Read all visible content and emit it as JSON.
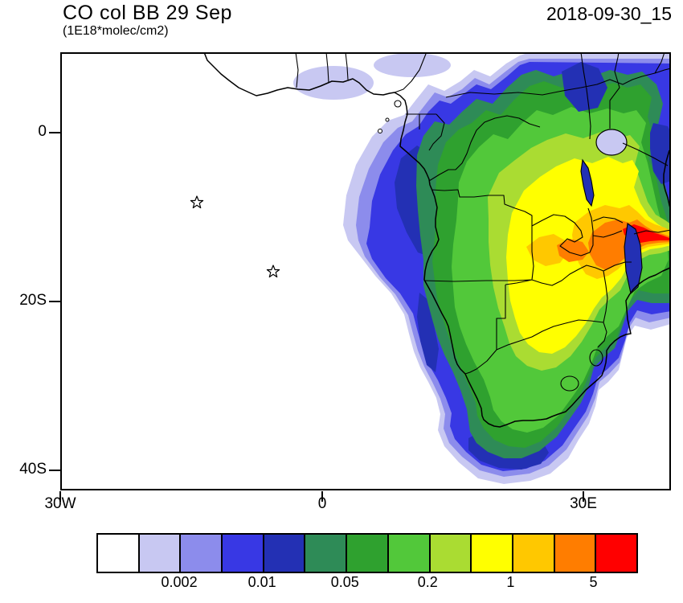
{
  "header": {
    "title": "CO col BB 29 Sep",
    "subtitle": "(1E18*molec/cm2)",
    "timestamp": "2018-09-30_15"
  },
  "map": {
    "y_ticks": [
      "0",
      "20S",
      "40S"
    ],
    "x_ticks": [
      "30W",
      "0",
      "30E"
    ]
  },
  "colorbar": {
    "labels": [
      "0.002",
      "0.01",
      "0.05",
      "0.2",
      "1",
      "5"
    ],
    "colors": [
      "#ffffff",
      "#c8c8f2",
      "#8c8cec",
      "#3838e4",
      "#2330b4",
      "#2e8b57",
      "#2fa12f",
      "#52c83a",
      "#aadc32",
      "#ffff00",
      "#ffc800",
      "#ff7d00",
      "#ff0000"
    ]
  },
  "chart_data": {
    "type": "heatmap",
    "subtype": "filled-contour-map",
    "title": "CO col BB 29 Sep",
    "units": "1E18*molec/cm2",
    "run_label": "2018-09-30_15",
    "region": "Africa and South Atlantic",
    "lon_range_deg": [
      -30,
      40
    ],
    "lat_range_deg": [
      -42,
      9.5
    ],
    "x_tick_labels": [
      "30W",
      "0",
      "30E"
    ],
    "y_tick_labels": [
      "0",
      "20S",
      "40S"
    ],
    "colorbar_tick_labels": [
      "0.002",
      "0.01",
      "0.05",
      "0.2",
      "1",
      "5"
    ],
    "contour_levels": [
      0.001,
      0.002,
      0.005,
      0.01,
      0.02,
      0.05,
      0.1,
      0.2,
      0.5,
      1,
      2,
      5
    ],
    "palette": [
      "#ffffff",
      "#c8c8f2",
      "#8c8cec",
      "#3838e4",
      "#2330b4",
      "#2e8b57",
      "#2fa12f",
      "#52c83a",
      "#aadc32",
      "#ffff00",
      "#ffc800",
      "#ff7d00",
      "#ff0000"
    ],
    "legend_position": "bottom",
    "grid": false,
    "markers": [
      {
        "symbol": "star",
        "lon": -14.3,
        "lat": -8.3
      },
      {
        "symbol": "star",
        "lon": -5.6,
        "lat": -16.5
      }
    ],
    "features": [
      {
        "description": "CO column maximum, values above 5",
        "lon": 31,
        "lat": -12
      },
      {
        "description": "orange band 2-5 stretching to east edge",
        "lon": 34,
        "lat": -12.5
      },
      {
        "description": "broad yellow plume 0.5-2 over southern DRC / Zambia",
        "lon": 26,
        "lat": -11
      },
      {
        "description": "green plume 0.05-0.5 over Congo, Angola, Botswana, eastern South Africa",
        "lon": 20,
        "lat": -15
      },
      {
        "description": "blue outflow 0.002-0.05 over South Atlantic and Southern Ocean",
        "lon": 5,
        "lat": -14
      }
    ]
  }
}
